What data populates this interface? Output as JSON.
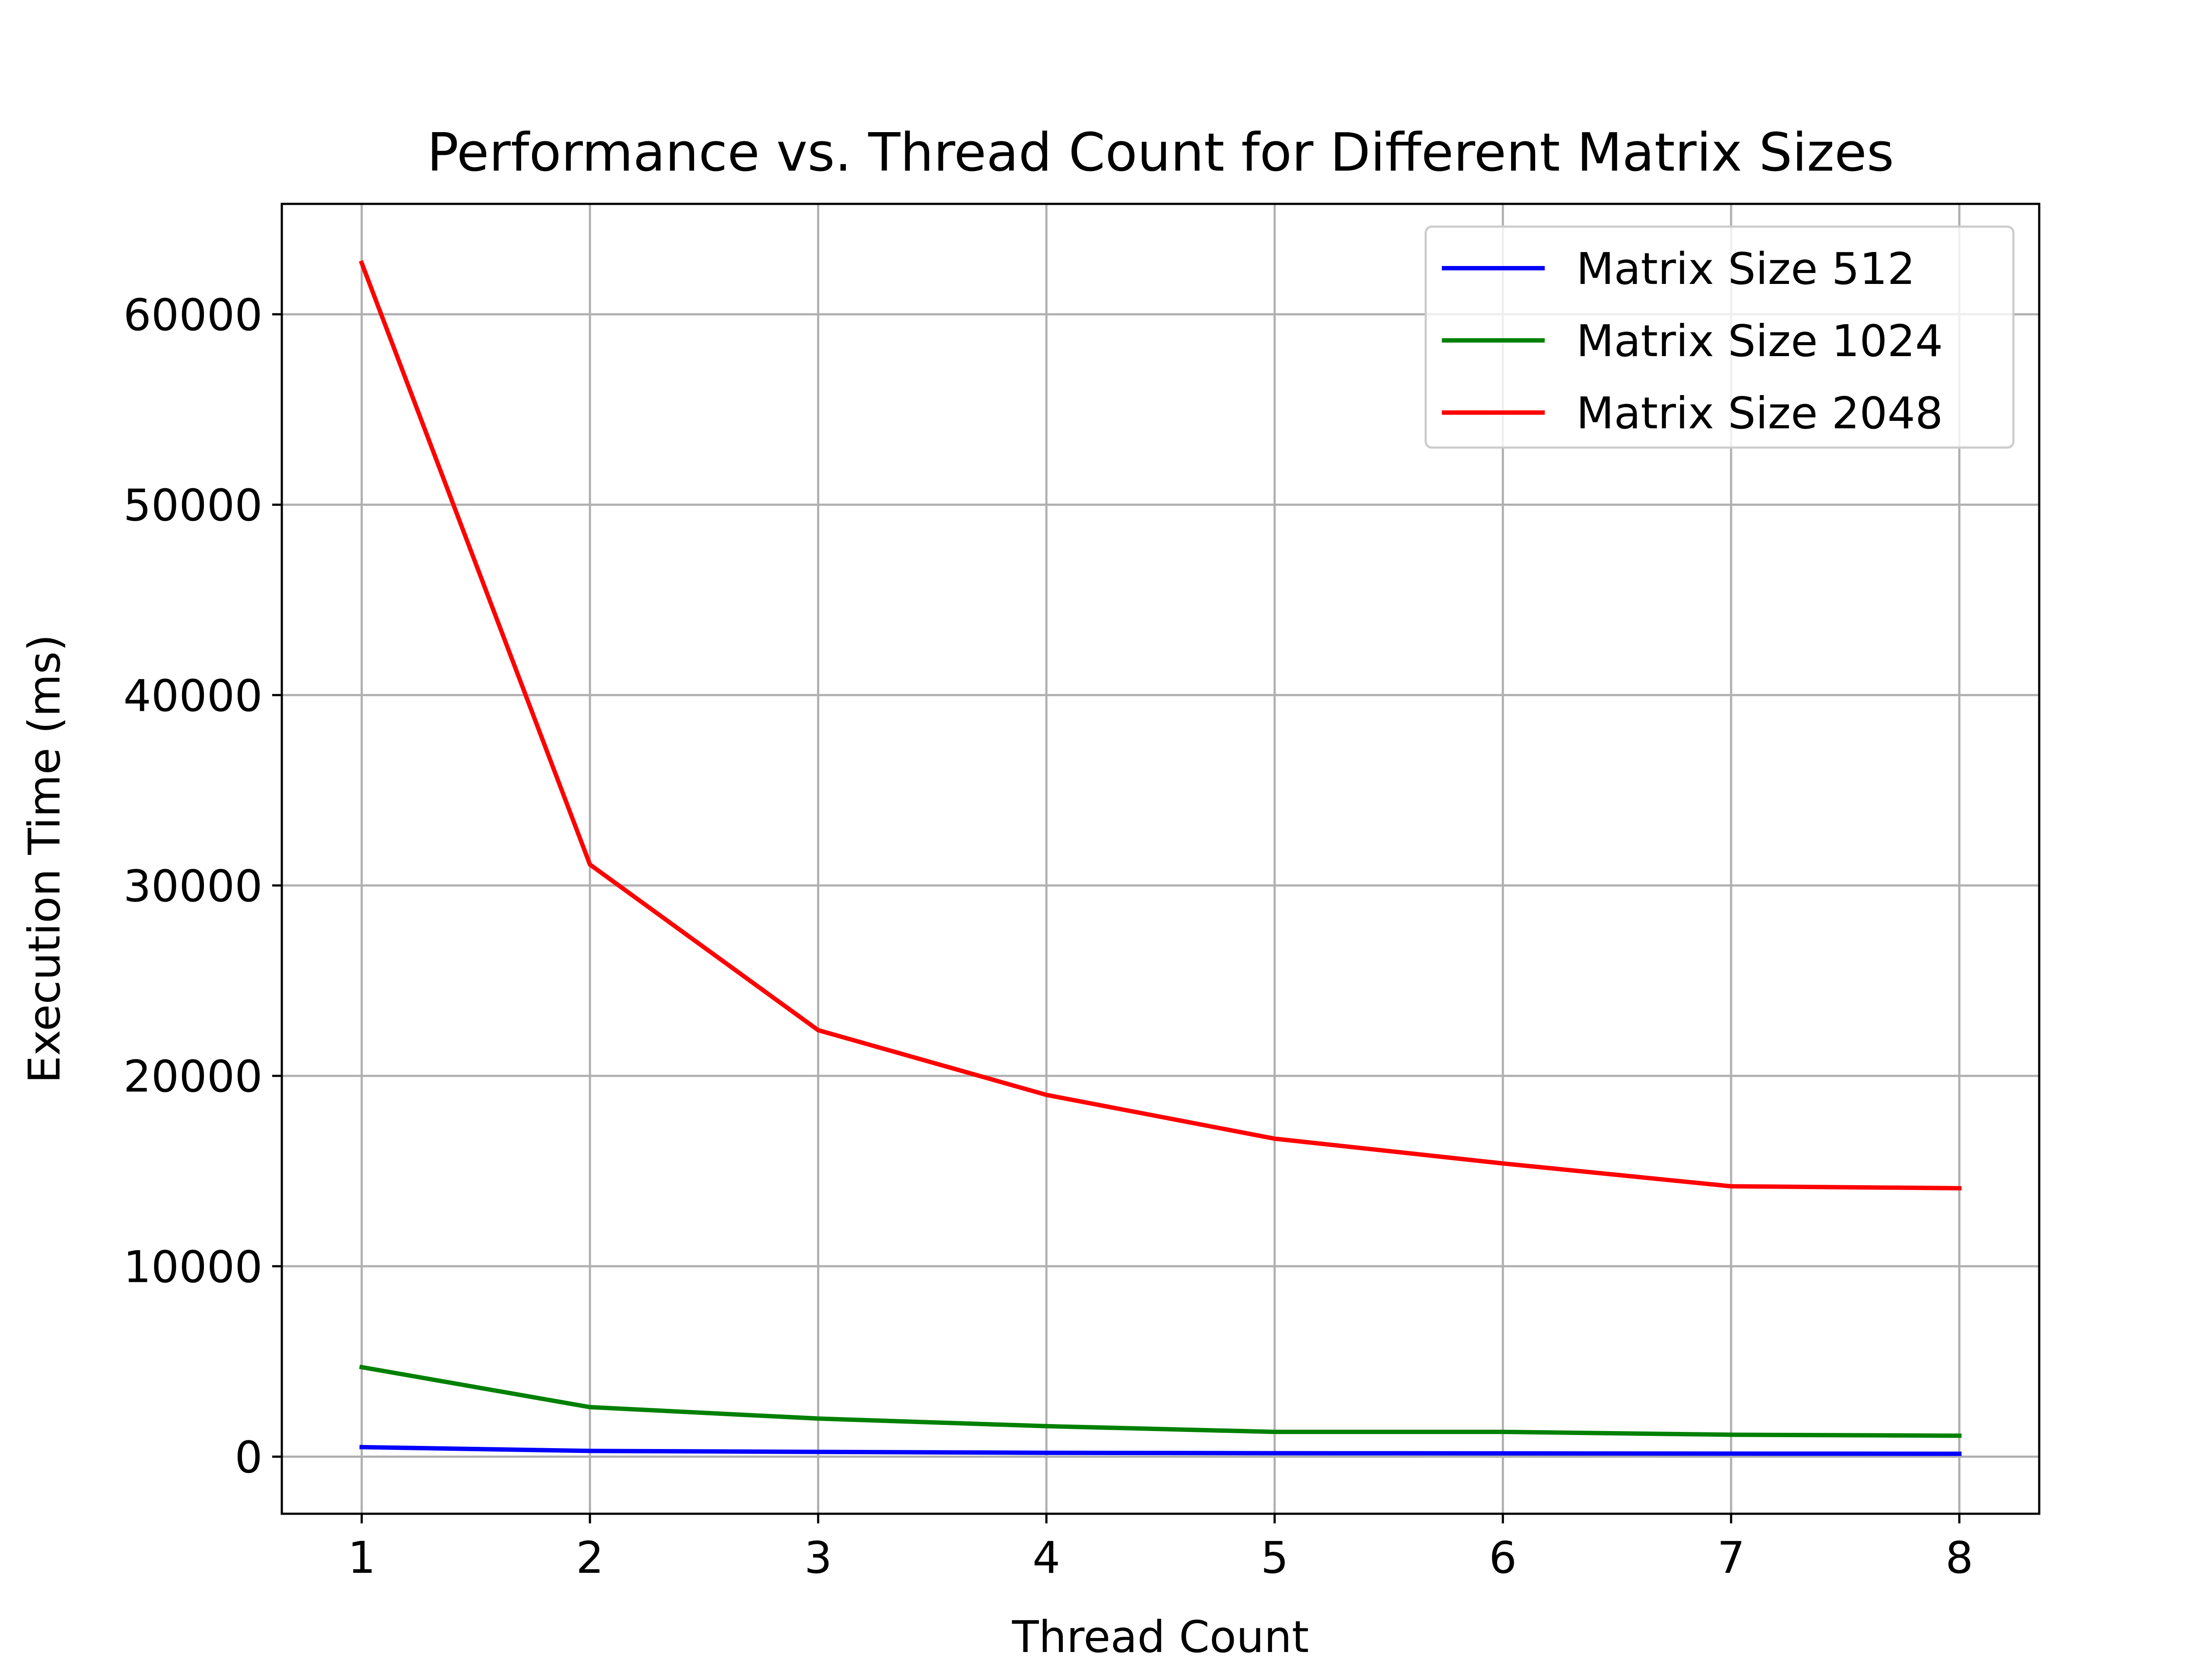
{
  "chart_data": {
    "type": "line",
    "title": "Performance vs. Thread Count for Different Matrix Sizes",
    "xlabel": "Thread Count",
    "ylabel": "Execution Time (ms)",
    "x": [
      1,
      2,
      3,
      4,
      5,
      6,
      7,
      8
    ],
    "xlim": [
      0.65,
      8.35
    ],
    "ylim": [
      -3000,
      65800
    ],
    "xticks": [
      1,
      2,
      3,
      4,
      5,
      6,
      7,
      8
    ],
    "yticks": [
      0,
      10000,
      20000,
      30000,
      40000,
      50000,
      60000
    ],
    "grid": true,
    "legend_position": "top-right",
    "series": [
      {
        "name": "Matrix Size 512",
        "color": "#0000ff",
        "values": [
          500,
          300,
          250,
          200,
          180,
          170,
          160,
          150
        ]
      },
      {
        "name": "Matrix Size 1024",
        "color": "#008000",
        "values": [
          4700,
          2600,
          2000,
          1600,
          1300,
          1300,
          1150,
          1100
        ]
      },
      {
        "name": "Matrix Size 2048",
        "color": "#ff0000",
        "values": [
          62700,
          31100,
          22400,
          19000,
          16700,
          15400,
          14200,
          14100
        ]
      }
    ]
  }
}
